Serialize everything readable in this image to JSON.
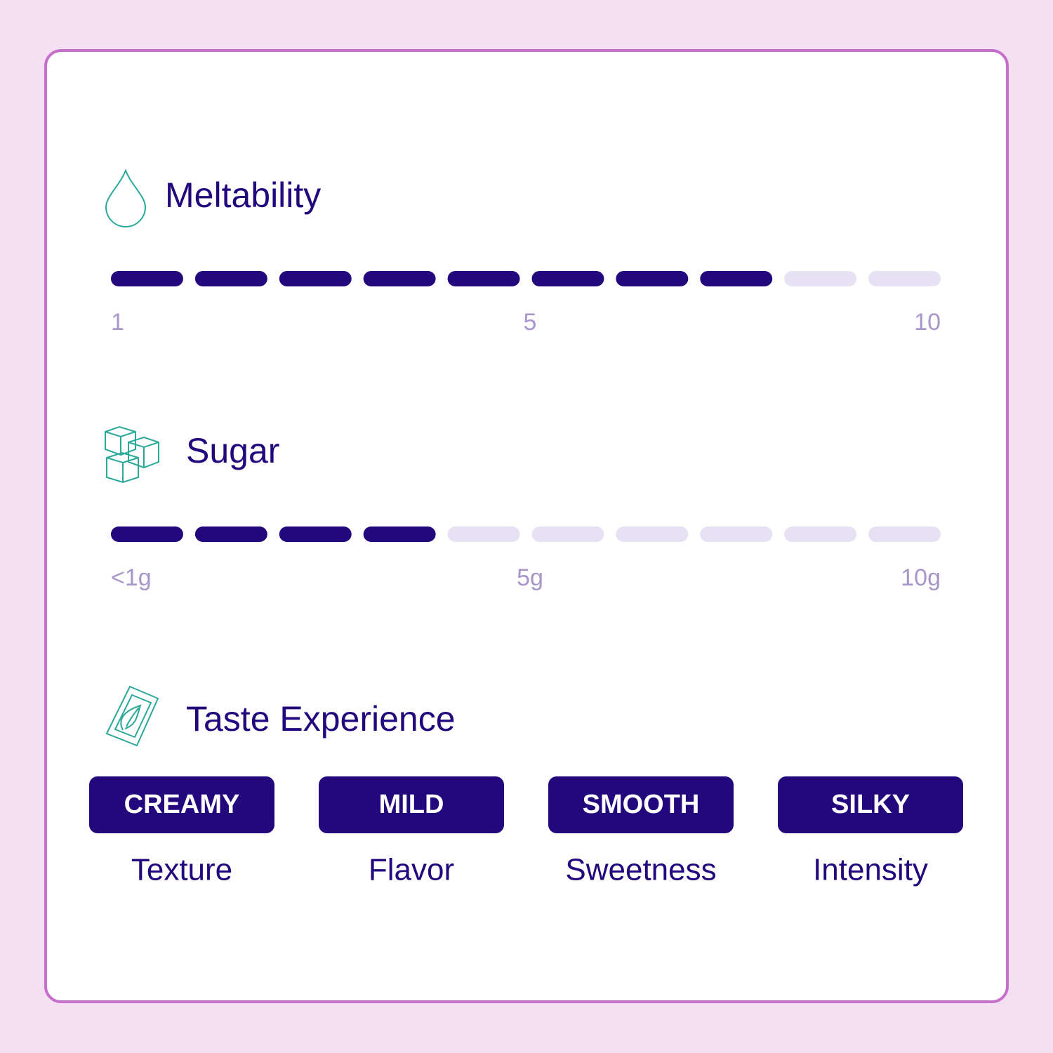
{
  "meters": [
    {
      "title": "Meltability",
      "filled": 8,
      "segments": 10,
      "scale_labels": [
        "1",
        "5",
        "10"
      ]
    },
    {
      "title": "Sugar",
      "filled": 4,
      "segments": 10,
      "scale_labels": [
        "<1g",
        "5g",
        "10g"
      ]
    }
  ],
  "taste": {
    "title": "Taste Experience",
    "items": [
      {
        "badge": "CREAMY",
        "label": "Texture"
      },
      {
        "badge": "MILD",
        "label": "Flavor"
      },
      {
        "badge": "SMOOTH",
        "label": "Sweetness"
      },
      {
        "badge": "SILKY",
        "label": "Intensity"
      }
    ]
  }
}
